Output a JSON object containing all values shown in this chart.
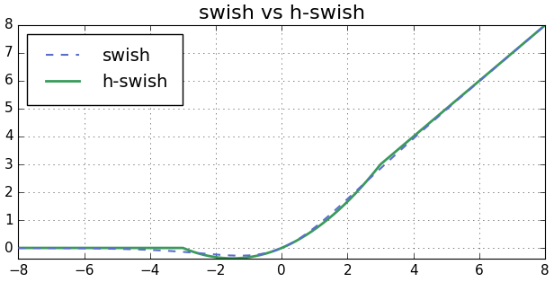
{
  "title": "swish vs h-swish",
  "xlim": [
    -8,
    8
  ],
  "ylim": [
    -0.4,
    8.0
  ],
  "xticks": [
    -8,
    -6,
    -4,
    -2,
    0,
    2,
    4,
    6,
    8
  ],
  "yticks": [
    0,
    1,
    2,
    3,
    4,
    5,
    6,
    7,
    8
  ],
  "swish_color": "#5b6ecc",
  "hswish_color": "#3a9a5c",
  "grid_color": "#000000",
  "background_color": "#ffffff",
  "legend_labels": [
    "swish",
    "h-swish"
  ],
  "title_fontsize": 16
}
